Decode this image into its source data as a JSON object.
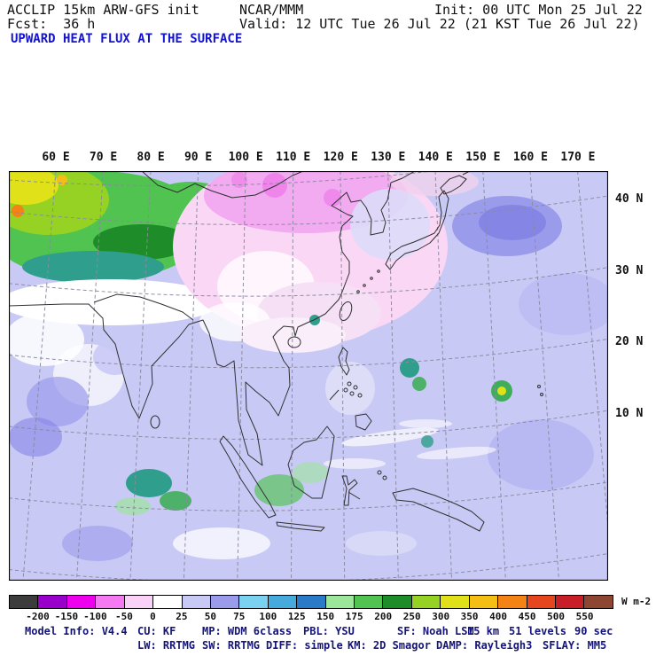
{
  "header": {
    "left_line1": "ACCLIP 15km ARW-GFS init",
    "left_line2": "Fcst:  36 h",
    "center_line1": "NCAR/MMM",
    "center_line2": "Valid: 12 UTC Tue 26 Jul 22 (21 KST Tue 26 Jul 22)",
    "right_line1": "Init: 00 UTC Mon 25 Jul 22",
    "title": "UPWARD HEAT FLUX AT THE SURFACE",
    "title_color": "#1414cd"
  },
  "map": {
    "lon_labels": [
      "60 E",
      "70 E",
      "80 E",
      "90 E",
      "100 E",
      "110 E",
      "120 E",
      "130 E",
      "140 E",
      "150 E",
      "160 E",
      "170 E"
    ],
    "lat_labels": [
      "40 N",
      "30 N",
      "20 N",
      "10 N"
    ],
    "ocean_color": "#c9c9f6",
    "grid_color": "#8a8aa0",
    "coast_color": "#303030"
  },
  "colorbar": {
    "units_label": "W m-2",
    "tick_labels": [
      "-200",
      "-150",
      "-100",
      "-50",
      "0",
      "25",
      "50",
      "75",
      "100",
      "125",
      "150",
      "175",
      "200",
      "250",
      "300",
      "350",
      "400",
      "450",
      "500",
      "550"
    ],
    "cell_colors": [
      "#3c3c3c",
      "#9900cc",
      "#ee00ee",
      "#f57af2",
      "#fad2f7",
      "#ffffff",
      "#c9c9f6",
      "#9b9bec",
      "#7ad2f0",
      "#46aadc",
      "#2a7ac8",
      "#9ce69c",
      "#50c350",
      "#1e8c28",
      "#96d223",
      "#e1e119",
      "#f5be14",
      "#f58214",
      "#e6461e",
      "#c81e28",
      "#8c4632"
    ]
  },
  "footer": {
    "text_color": "#14147a",
    "row1": {
      "model_info": "Model Info: V4.4",
      "cu": "CU: KF",
      "mp": "MP: WDM 6class",
      "pbl": "PBL: YSU",
      "sf": "SF: Noah LSM",
      "grid": "15 km",
      "levels": "51 levels",
      "timestep": "90 sec"
    },
    "row2": {
      "lw": "LW: RRTMG",
      "sw": "SW: RRTMG",
      "diff": "DIFF: simple",
      "km": "KM: 2D Smagor",
      "damp": "DAMP: Rayleigh3",
      "sflay": "SFLAY: MM5"
    }
  },
  "chart_data": {
    "type": "heatmap",
    "title": "UPWARD HEAT FLUX AT THE SURFACE",
    "units": "W m-2",
    "model": "ACCLIP 15km ARW-GFS init",
    "center": "NCAR/MMM",
    "forecast_hour": 36,
    "init_time": "00 UTC Mon 25 Jul 22",
    "valid_time": "12 UTC Tue 26 Jul 22 (21 KST Tue 26 Jul 22)",
    "x_ticks": [
      "60 E",
      "70 E",
      "80 E",
      "90 E",
      "100 E",
      "110 E",
      "120 E",
      "130 E",
      "140 E",
      "150 E",
      "160 E",
      "170 E"
    ],
    "y_ticks": [
      "40 N",
      "30 N",
      "20 N",
      "10 N"
    ],
    "grid": "dashed lat-lon graticule, 10 degree spacing",
    "legend_position": "bottom colorbar",
    "color_scale_boundaries": [
      -200,
      -150,
      -100,
      -50,
      0,
      25,
      50,
      75,
      100,
      125,
      150,
      175,
      200,
      250,
      300,
      350,
      400,
      450,
      500,
      550
    ],
    "color_scale_colors": [
      "#3c3c3c",
      "#9900cc",
      "#ee00ee",
      "#f57af2",
      "#fad2f7",
      "#ffffff",
      "#c9c9f6",
      "#9b9bec",
      "#7ad2f0",
      "#46aadc",
      "#2a7ac8",
      "#9ce69c",
      "#50c350",
      "#1e8c28",
      "#96d223",
      "#e1e119",
      "#f5be14",
      "#f58214",
      "#e6461e",
      "#c81e28",
      "#8c4632"
    ],
    "field_summary": [
      {
        "region": "Tibetan Plateau and high terrain (60-100E, 25-42N)",
        "approx_value_wm2": "150 to 350 (greens/yellow, small orange maxima in NW corner)"
      },
      {
        "region": "Mongolia and eastern China",
        "approx_value_wm2": "-100 to 0 (pink/magenta, brightest over Mongolia)"
      },
      {
        "region": "Open ocean (dominant lavender)",
        "approx_value_wm2": "25 to 75"
      },
      {
        "region": "NW Pacific patch near 150-160E, 38-42N",
        "approx_value_wm2": "50 to 75 (darker periwinkle)"
      },
      {
        "region": "Scattered convective spots (Bay of Bengal, S China coast, W Pacific near 150E 12N)",
        "approx_value_wm2": "175 to 350 (teal/green with yellow cores)"
      },
      {
        "region": "White areas (India, central China, thin ocean cloud streaks)",
        "approx_value_wm2": "0 to 25"
      }
    ]
  }
}
